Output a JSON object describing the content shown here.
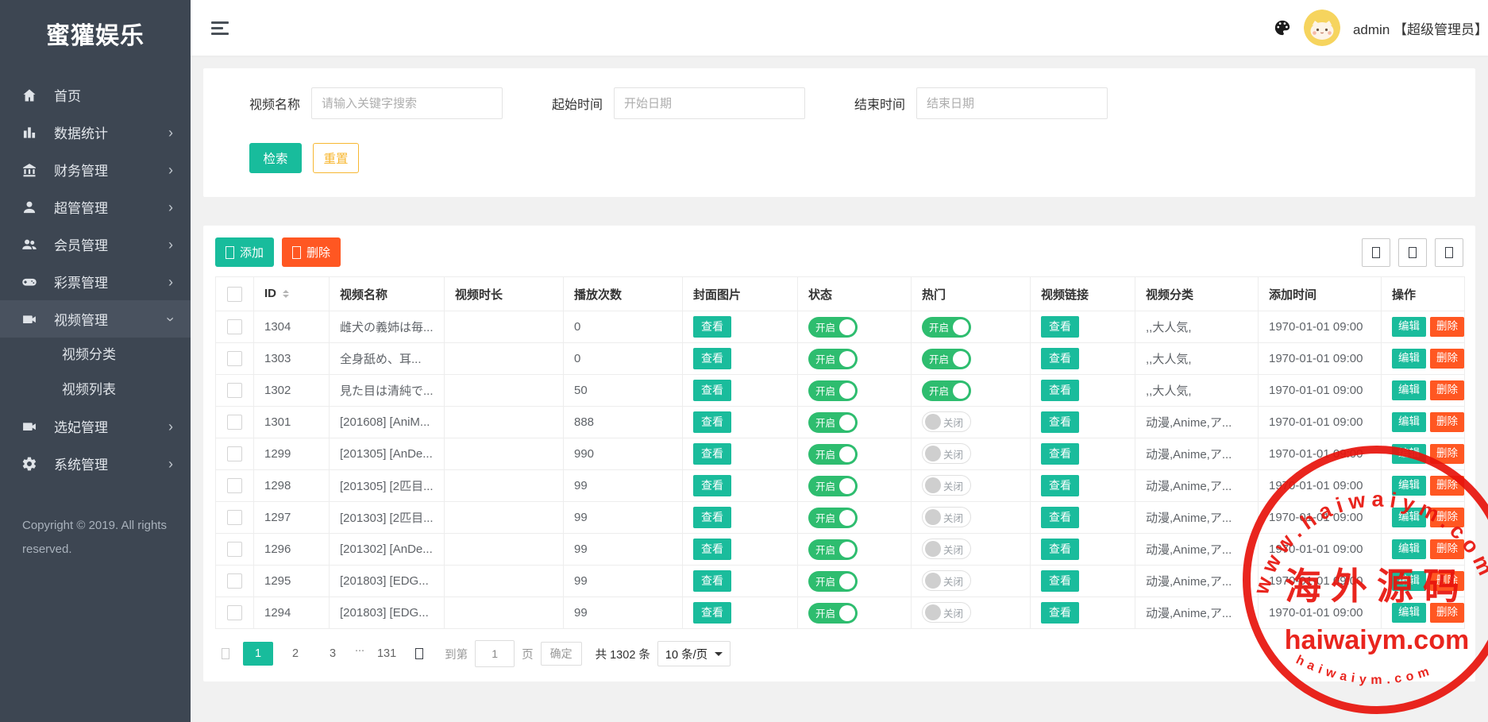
{
  "theme": {
    "sidebar_bg": "#3d4652",
    "accent_teal": "#18bc9c",
    "toggle_green": "#2ebd6f",
    "danger_orange": "#ff5722",
    "reset_yellow": "#f7b731",
    "stamp_red": "#e8130c"
  },
  "sidebar": {
    "logo": "蜜獾娱乐",
    "items": [
      {
        "key": "home",
        "icon": "home-icon",
        "label": "首页",
        "arrow": ""
      },
      {
        "key": "stats",
        "icon": "bar-chart-icon",
        "label": "数据统计",
        "arrow": "›"
      },
      {
        "key": "finance",
        "icon": "bank-icon",
        "label": "财务管理",
        "arrow": "›"
      },
      {
        "key": "superadmin",
        "icon": "user-icon",
        "label": "超管管理",
        "arrow": "›"
      },
      {
        "key": "members",
        "icon": "users-icon",
        "label": "会员管理",
        "arrow": "›"
      },
      {
        "key": "lottery",
        "icon": "gamepad-icon",
        "label": "彩票管理",
        "arrow": "›"
      },
      {
        "key": "video",
        "icon": "video-camera-icon",
        "label": "视频管理",
        "arrow": "›",
        "active": true,
        "children": [
          {
            "key": "video-category",
            "label": "视频分类"
          },
          {
            "key": "video-list",
            "label": "视频列表"
          }
        ]
      },
      {
        "key": "concubine",
        "icon": "video-camera-icon",
        "label": "选妃管理",
        "arrow": "›"
      },
      {
        "key": "system",
        "icon": "gear-icon",
        "label": "系统管理",
        "arrow": "›"
      }
    ],
    "copyright": "Copyright © 2019. All rights reserved."
  },
  "header": {
    "username": "admin 【超级管理员】"
  },
  "search": {
    "fields": [
      {
        "key": "video-name",
        "label": "视频名称",
        "placeholder": "请输入关键字搜索"
      },
      {
        "key": "start-time",
        "label": "起始时间",
        "placeholder": "开始日期"
      },
      {
        "key": "end-time",
        "label": "结束时间",
        "placeholder": "结束日期"
      }
    ],
    "search_label": "检索",
    "reset_label": "重置"
  },
  "toolbar": {
    "add_label": "添加",
    "delete_label": "删除"
  },
  "table": {
    "columns": [
      "ID",
      "视频名称",
      "视频时长",
      "播放次数",
      "封面图片",
      "状态",
      "热门",
      "视频链接",
      "视频分类",
      "添加时间",
      "操作"
    ],
    "view_label": "查看",
    "edit_label": "编辑",
    "delete_label": "删除",
    "on_label": "开启",
    "off_label": "关闭",
    "rows": [
      {
        "id": "1304",
        "name": "雌犬の義姉は毎...",
        "duration": "",
        "plays": "0",
        "status": "on",
        "hot": "on",
        "category": ",,大人気,",
        "time": "1970-01-01 09:00"
      },
      {
        "id": "1303",
        "name": "全身舐め、耳...",
        "duration": "",
        "plays": "0",
        "status": "on",
        "hot": "on",
        "category": ",,大人気,",
        "time": "1970-01-01 09:00"
      },
      {
        "id": "1302",
        "name": "見た目は清純で...",
        "duration": "",
        "plays": "50",
        "status": "on",
        "hot": "on",
        "category": ",,大人気,",
        "time": "1970-01-01 09:00"
      },
      {
        "id": "1301",
        "name": "[201608] [AniM...",
        "duration": "",
        "plays": "888",
        "status": "on",
        "hot": "off",
        "category": "动漫,Anime,ア...",
        "time": "1970-01-01 09:00"
      },
      {
        "id": "1299",
        "name": "[201305] [AnDe...",
        "duration": "",
        "plays": "990",
        "status": "on",
        "hot": "off",
        "category": "动漫,Anime,ア...",
        "time": "1970-01-01 09:00"
      },
      {
        "id": "1298",
        "name": "[201305] [2匹目...",
        "duration": "",
        "plays": "99",
        "status": "on",
        "hot": "off",
        "category": "动漫,Anime,ア...",
        "time": "1970-01-01 09:00"
      },
      {
        "id": "1297",
        "name": "[201303] [2匹目...",
        "duration": "",
        "plays": "99",
        "status": "on",
        "hot": "off",
        "category": "动漫,Anime,ア...",
        "time": "1970-01-01 09:00"
      },
      {
        "id": "1296",
        "name": "[201302] [AnDe...",
        "duration": "",
        "plays": "99",
        "status": "on",
        "hot": "off",
        "category": "动漫,Anime,ア...",
        "time": "1970-01-01 09:00"
      },
      {
        "id": "1295",
        "name": "[201803] [EDG...",
        "duration": "",
        "plays": "99",
        "status": "on",
        "hot": "off",
        "category": "动漫,Anime,ア...",
        "time": "1970-01-01 09:00"
      },
      {
        "id": "1294",
        "name": "[201803] [EDG...",
        "duration": "",
        "plays": "99",
        "status": "on",
        "hot": "off",
        "category": "动漫,Anime,ア...",
        "time": "1970-01-01 09:00"
      }
    ]
  },
  "pagination": {
    "pages": [
      "1",
      "2",
      "3",
      "...",
      "131"
    ],
    "active_page": "1",
    "goto_label": "到第",
    "goto_value": "1",
    "page_suffix": "页",
    "confirm_label": "确定",
    "total_label": "共 1302 条",
    "per_page": "10 条/页"
  },
  "watermark": {
    "arc_top": "www.haiwaiym.com",
    "center": "海外源码",
    "domain": "haiwaiym.com",
    "arc_bottom": "haiwaiym.com"
  }
}
